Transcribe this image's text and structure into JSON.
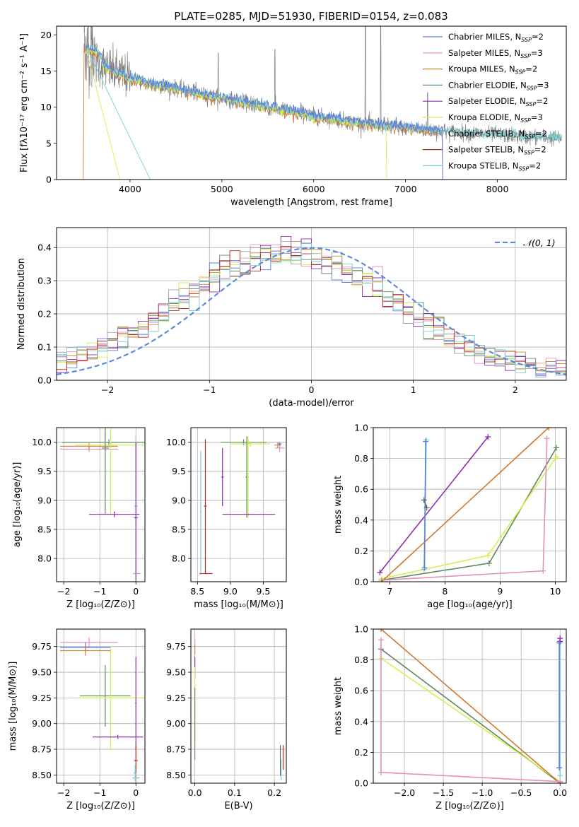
{
  "figure_title": "PLATE=0285, MJD=51930, FIBERID=0154, z=0.083",
  "colors": {
    "chabrier_miles": "#5b7fe0",
    "salpeter_miles": "#e58fc0",
    "kroupa_miles": "#c8882e",
    "chabrier_elodie": "#5f8a5c",
    "salpeter_elodie": "#8f2eb0",
    "kroupa_elodie": "#d4ef50",
    "chabrier_stelib": "#a0a0a0",
    "salpeter_stelib": "#c0281a",
    "kroupa_stelib": "#7ad0d6",
    "data": "#808080",
    "normal": "#5b8bd8",
    "orange": "#d2782e"
  },
  "chart_data": [
    {
      "id": "spectrum",
      "type": "line",
      "xlabel": "wavelength [Angstrom, rest frame]",
      "ylabel": "Flux [fλ10⁻¹⁷ erg cm⁻² s⁻¹ A⁻¹]",
      "xlim": [
        3200,
        8750
      ],
      "ylim": [
        0,
        21.2
      ],
      "xticks": [
        4000,
        5000,
        6000,
        7000,
        8000
      ],
      "yticks": [
        0,
        5,
        10,
        15,
        20
      ],
      "continuum": {
        "x": [
          3500,
          3600,
          3800,
          4000,
          4200,
          4500,
          4800,
          5200,
          5600,
          6000,
          6400,
          6800,
          7200,
          7600,
          8000,
          8400,
          8700
        ],
        "y": [
          17.0,
          16.5,
          15.0,
          14.0,
          13.3,
          12.6,
          11.7,
          10.8,
          9.8,
          8.8,
          8.0,
          7.4,
          6.9,
          6.5,
          6.2,
          5.9,
          5.7
        ]
      },
      "legend": [
        {
          "label": "Chabrier MILES, N",
          "sub": "SSP",
          "suffix": "=2",
          "color": "#5b7fe0"
        },
        {
          "label": "Salpeter MILES, N",
          "sub": "SSP",
          "suffix": "=3",
          "color": "#e58fc0"
        },
        {
          "label": "Kroupa MILES, N",
          "sub": "SSP",
          "suffix": "=2",
          "color": "#c8882e"
        },
        {
          "label": "Chabrier ELODIE, N",
          "sub": "SSP",
          "suffix": "=3",
          "color": "#5f8a5c"
        },
        {
          "label": "Salpeter ELODIE, N",
          "sub": "SSP",
          "suffix": "=2",
          "color": "#8f2eb0"
        },
        {
          "label": "Kroupa ELODIE, N",
          "sub": "SSP",
          "suffix": "=3",
          "color": "#d4ef50"
        },
        {
          "label": "Chabrier STELIB, N",
          "sub": "SSP",
          "suffix": "=2",
          "color": "#a0a0a0"
        },
        {
          "label": "Salpeter STELIB, N",
          "sub": "SSP",
          "suffix": "=2",
          "color": "#c0281a"
        },
        {
          "label": "Kroupa STELIB, N",
          "sub": "SSP",
          "suffix": "=2",
          "color": "#7ad0d6"
        }
      ]
    },
    {
      "id": "residuals",
      "type": "step",
      "xlabel": "(data-model)/error",
      "ylabel": "Normed distribution",
      "xlim": [
        -2.5,
        2.5
      ],
      "ylim": [
        0,
        0.46
      ],
      "xticks": [
        -2,
        -1,
        0,
        1,
        2
      ],
      "yticks": [
        0.0,
        0.1,
        0.2,
        0.3,
        0.4
      ],
      "normal_label": "𝒩(0, 1)",
      "bins": 50
    },
    {
      "id": "age_vs_z",
      "type": "errorbar",
      "xlabel": "Z [log₁₀(Z/Z⊙)]",
      "ylabel": "age  [log₁₀(age/yr)]",
      "xlim": [
        -2.2,
        0.25
      ],
      "ylim": [
        7.6,
        10.25
      ],
      "xticks": [
        -2,
        -1,
        0
      ],
      "yticks": [
        8.0,
        8.5,
        9.0,
        9.5,
        10.0
      ],
      "points": [
        {
          "x": -0.75,
          "y": 10.0,
          "xerr": 1.3,
          "yerr": 0.05,
          "color": "#5b7fe0"
        },
        {
          "x": -1.3,
          "y": 9.88,
          "xerr": 0.8,
          "yerr": 0.05,
          "color": "#e58fc0"
        },
        {
          "x": -1.3,
          "y": 9.93,
          "xerr": 0.8,
          "yerr": 0.05,
          "color": "#c8882e"
        },
        {
          "x": -0.85,
          "y": 10.0,
          "xerr": 1.2,
          "yerr": 0.15,
          "color": "#5f8a5c"
        },
        {
          "x": -0.7,
          "y": 9.95,
          "xerr": 1.0,
          "yerr": 0.05,
          "color": "#d4ef50"
        },
        {
          "x": -0.85,
          "y": 9.9,
          "xerr": 0.1,
          "yerr": 1.15,
          "color": "#5f8a5c"
        },
        {
          "x": -0.7,
          "y": 9.95,
          "xerr": 0.1,
          "yerr": 1.2,
          "color": "#d4ef50"
        },
        {
          "x": -0.6,
          "y": 8.76,
          "xerr": 0.7,
          "yerr": 0.05,
          "color": "#8f2eb0"
        },
        {
          "x": 0.0,
          "y": 8.9,
          "xerr": 0.05,
          "yerr": 1.2,
          "color": "#7ad0d6"
        },
        {
          "x": 0.0,
          "y": 8.7,
          "xerr": 0.05,
          "yerr": 1.3,
          "color": "#8f2eb0"
        },
        {
          "x": 0.02,
          "y": 7.74,
          "xerr": 0.1,
          "yerr": 0.01,
          "color": "#a0a0a0"
        }
      ]
    },
    {
      "id": "age_vs_mass",
      "type": "errorbar",
      "xlabel": "mass [log₁₀(M/M⊙)]",
      "ylabel": "",
      "xlim": [
        8.4,
        9.85
      ],
      "ylim": [
        7.6,
        10.25
      ],
      "xticks": [
        8.5,
        9.0,
        9.5
      ],
      "yticks": [
        8.0,
        8.5,
        9.0,
        9.5,
        10.0
      ],
      "points": [
        {
          "x": 9.2,
          "y": 10.0,
          "xerr": 0.35,
          "yerr": 0.05,
          "color": "#5f8a5c"
        },
        {
          "x": 9.3,
          "y": 9.97,
          "xerr": 0.3,
          "yerr": 0.05,
          "color": "#d4ef50"
        },
        {
          "x": 9.25,
          "y": 9.4,
          "xerr": 0.02,
          "yerr": 0.7,
          "color": "#5f8a5c"
        },
        {
          "x": 9.27,
          "y": 9.4,
          "xerr": 0.02,
          "yerr": 0.7,
          "color": "#d4ef50"
        },
        {
          "x": 9.28,
          "y": 8.76,
          "xerr": 0.4,
          "yerr": 0.01,
          "color": "#8f2eb0"
        },
        {
          "x": 8.88,
          "y": 9.4,
          "xerr": 0.02,
          "yerr": 0.5,
          "color": "#8f2eb0"
        },
        {
          "x": 9.75,
          "y": 9.9,
          "xerr": 0.07,
          "yerr": 0.07,
          "color": "#e58fc0"
        },
        {
          "x": 9.72,
          "y": 9.95,
          "xerr": 0.05,
          "yerr": 0.05,
          "color": "#c8882e"
        },
        {
          "x": 9.75,
          "y": 9.97,
          "xerr": 0.03,
          "yerr": 0.03,
          "color": "#5b7fe0"
        },
        {
          "x": 8.62,
          "y": 8.9,
          "xerr": 0.02,
          "yerr": 1.15,
          "color": "#c0281a"
        },
        {
          "x": 8.63,
          "y": 7.74,
          "xerr": 0.1,
          "yerr": 0.01,
          "color": "#c0281a"
        },
        {
          "x": 8.55,
          "y": 8.8,
          "xerr": 0.01,
          "yerr": 1.05,
          "color": "#7ad0d6"
        }
      ]
    },
    {
      "id": "mw_vs_age",
      "type": "line",
      "xlabel": "age  [log₁₀(age/yr)]",
      "ylabel": "mass weight",
      "xlim": [
        6.7,
        10.2
      ],
      "ylim": [
        0.0,
        1.0
      ],
      "xticks": [
        7,
        8,
        9,
        10
      ],
      "yticks": [
        0.0,
        0.2,
        0.4,
        0.6,
        0.8,
        1.0
      ],
      "series": [
        {
          "color": "#5f8a5c",
          "x": [
            6.85,
            8.8,
            10.02
          ],
          "y": [
            0.01,
            0.12,
            0.87
          ]
        },
        {
          "color": "#d4ef50",
          "x": [
            6.85,
            8.78,
            10.02
          ],
          "y": [
            0.02,
            0.17,
            0.81
          ]
        },
        {
          "color": "#e58fc0",
          "x": [
            6.85,
            9.78,
            9.85
          ],
          "y": [
            0.01,
            0.07,
            0.93
          ]
        },
        {
          "color": "#d2782e",
          "x": [
            6.85,
            9.88
          ],
          "y": [
            0.0,
            1.0
          ]
        },
        {
          "color": "#8f2eb0",
          "x": [
            6.82,
            8.78
          ],
          "y": [
            0.06,
            0.94
          ]
        },
        {
          "color": "#7ad0d6",
          "x": [
            7.62,
            7.66
          ],
          "y": [
            0.08,
            0.92
          ]
        },
        {
          "color": "#5b7fe0",
          "x": [
            7.63,
            7.65
          ],
          "y": [
            0.09,
            0.91
          ]
        },
        {
          "color": "#5f6f66",
          "x": [
            7.62,
            7.67
          ],
          "y": [
            0.53,
            0.48
          ]
        }
      ]
    },
    {
      "id": "mass_vs_z",
      "type": "errorbar",
      "xlabel": "Z [log₁₀(Z/Z⊙)]",
      "ylabel": "mass [log₁₀(M/M⊙)]",
      "xlim": [
        -2.2,
        0.25
      ],
      "ylim": [
        8.42,
        9.92
      ],
      "xticks": [
        -2,
        -1,
        0
      ],
      "yticks": [
        8.5,
        8.75,
        9.0,
        9.25,
        9.5,
        9.75
      ],
      "points": [
        {
          "x": -1.3,
          "y": 9.79,
          "xerr": 0.8,
          "yerr": 0.05,
          "color": "#e58fc0"
        },
        {
          "x": -1.4,
          "y": 9.74,
          "xerr": 0.7,
          "yerr": 0.05,
          "color": "#5b7fe0"
        },
        {
          "x": -1.4,
          "y": 9.71,
          "xerr": 0.7,
          "yerr": 0.05,
          "color": "#c8882e"
        },
        {
          "x": -0.85,
          "y": 9.27,
          "xerr": 0.7,
          "yerr": 0.3,
          "color": "#5f8a5c"
        },
        {
          "x": -0.7,
          "y": 9.25,
          "xerr": 0.9,
          "yerr": 0.5,
          "color": "#d4ef50"
        },
        {
          "x": -0.5,
          "y": 8.87,
          "xerr": 0.7,
          "yerr": 0.02,
          "color": "#8f2eb0"
        },
        {
          "x": 0.0,
          "y": 9.2,
          "xerr": 0.02,
          "yerr": 0.45,
          "color": "#8f2eb0"
        },
        {
          "x": 0.0,
          "y": 8.64,
          "xerr": 0.05,
          "yerr": 0.15,
          "color": "#c0281a"
        },
        {
          "x": 0.0,
          "y": 8.47,
          "xerr": 0.1,
          "yerr": 0.05,
          "color": "#a0a0a0"
        },
        {
          "x": -0.02,
          "y": 8.52,
          "xerr": 0.05,
          "yerr": 0.08,
          "color": "#7ad0d6"
        }
      ]
    },
    {
      "id": "mass_vs_ebv",
      "type": "errorbar",
      "xlabel": "E(B-V)",
      "ylabel": "",
      "xlim": [
        -0.01,
        0.23
      ],
      "ylim": [
        8.42,
        9.92
      ],
      "xticks": [
        0.0,
        0.1,
        0.2
      ],
      "yticks": [
        8.5,
        8.75,
        9.0,
        9.25,
        9.5,
        9.75
      ],
      "points": [
        {
          "x": 0.0,
          "y": 9.78,
          "xerr": 0.0,
          "yerr": 0.05,
          "color": "#e58fc0"
        },
        {
          "x": 0.0,
          "y": 9.72,
          "xerr": 0.0,
          "yerr": 0.05,
          "color": "#c8882e"
        },
        {
          "x": 0.0,
          "y": 9.55,
          "xerr": 0.0,
          "yerr": 0.1,
          "color": "#8f2eb0"
        },
        {
          "x": 0.0,
          "y": 9.2,
          "xerr": 0.0,
          "yerr": 0.35,
          "color": "#d4ef50"
        },
        {
          "x": 0.0,
          "y": 9.0,
          "xerr": 0.0,
          "yerr": 0.35,
          "color": "#5f8a5c"
        },
        {
          "x": 0.215,
          "y": 8.64,
          "xerr": 0.0,
          "yerr": 0.15,
          "color": "#5f6f66"
        },
        {
          "x": 0.222,
          "y": 8.67,
          "xerr": 0.0,
          "yerr": 0.12,
          "color": "#c0281a"
        },
        {
          "x": 0.217,
          "y": 8.55,
          "xerr": 0.0,
          "yerr": 0.1,
          "color": "#7ad0d6"
        }
      ]
    },
    {
      "id": "mw_vs_z",
      "type": "line",
      "xlabel": "Z [log₁₀(Z/Z⊙)]",
      "ylabel": "mass weight",
      "xlim": [
        -2.4,
        0.08
      ],
      "ylim": [
        0.0,
        1.0
      ],
      "xticks": [
        -2.0,
        -1.5,
        -1.0,
        -0.5,
        0.0
      ],
      "yticks": [
        0.0,
        0.2,
        0.4,
        0.6,
        0.8,
        1.0
      ],
      "series": [
        {
          "color": "#5f8a5c",
          "x": [
            -2.3,
            0.0
          ],
          "y": [
            0.87,
            0.0
          ]
        },
        {
          "color": "#d4ef50",
          "x": [
            -2.3,
            0.0
          ],
          "y": [
            0.81,
            0.01
          ]
        },
        {
          "color": "#d2782e",
          "x": [
            -2.3,
            0.0
          ],
          "y": [
            1.0,
            0.0
          ]
        },
        {
          "color": "#e58fc0",
          "x": [
            -2.3,
            -2.3,
            0.0
          ],
          "y": [
            0.93,
            0.07,
            0.01
          ]
        },
        {
          "color": "#7ad0d6",
          "x": [
            0.0,
            0.0
          ],
          "y": [
            0.92,
            0.05
          ]
        },
        {
          "color": "#8f2eb0",
          "x": [
            0.0,
            0.0
          ],
          "y": [
            0.94,
            0.92
          ]
        },
        {
          "color": "#5b7fe0",
          "x": [
            -0.01,
            -0.01
          ],
          "y": [
            0.91,
            0.1
          ]
        }
      ]
    }
  ]
}
